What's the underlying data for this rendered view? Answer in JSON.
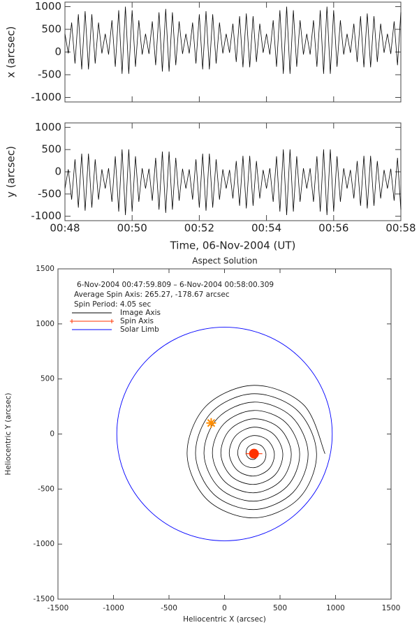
{
  "chart_data": [
    {
      "type": "line",
      "ylabel": "x (arcsec)",
      "xlim": [
        48,
        58
      ],
      "xticks": [
        48,
        50,
        52,
        54,
        56,
        58
      ],
      "ylim": [
        -1100,
        1100
      ],
      "yticks": [
        -1000,
        -500,
        0,
        500,
        1000
      ],
      "color": "#000000",
      "x": [
        48,
        48.1,
        48.2,
        48.3,
        48.4,
        48.5,
        48.6,
        48.7,
        48.8,
        48.9,
        49,
        49.1,
        49.2,
        49.3,
        49.4,
        49.5,
        49.6,
        49.7,
        49.8,
        49.9,
        50,
        50.1,
        50.2,
        50.3,
        50.4,
        50.5,
        50.6,
        50.7,
        50.8,
        50.9,
        51,
        51.1,
        51.2,
        51.3,
        51.4,
        51.5,
        51.6,
        51.7,
        51.8,
        51.9,
        52,
        52.1,
        52.2,
        52.3,
        52.4,
        52.5,
        52.6,
        52.7,
        52.8,
        52.9,
        53,
        53.1,
        53.2,
        53.3,
        53.4,
        53.5,
        53.6,
        53.7,
        53.8,
        53.9,
        54,
        54.1,
        54.2,
        54.3,
        54.4,
        54.5,
        54.6,
        54.7,
        54.8,
        54.9,
        55,
        55.1,
        55.2,
        55.3,
        55.4,
        55.5,
        55.6,
        55.7,
        55.8,
        55.9,
        56,
        56.1,
        56.2,
        56.3,
        56.4,
        56.5,
        56.6,
        56.7,
        56.8,
        56.9,
        57,
        57.1,
        57.2,
        57.3,
        57.4,
        57.5,
        57.6,
        57.7,
        57.8,
        57.9,
        58
      ],
      "values": [
        400,
        -30,
        650,
        -254,
        833,
        -383,
        900,
        -383,
        833,
        -254,
        650,
        -30,
        400,
        -55,
        700,
        -324,
        920,
        -480,
        1000,
        -480,
        920,
        -324,
        700,
        -55,
        400,
        -42,
        675,
        -289,
        876,
        -431,
        950,
        -431,
        876,
        -289,
        675,
        -42,
        400,
        -30,
        650,
        -254,
        833,
        -383,
        900,
        -383,
        833,
        -254,
        650,
        -30,
        400,
        -17,
        625,
        -218,
        790,
        -335,
        850,
        -335,
        790,
        -218,
        625,
        -17,
        400,
        -55,
        700,
        -324,
        920,
        -480,
        1000,
        -480,
        920,
        -324,
        700,
        -55,
        400,
        -55,
        700,
        -324,
        920,
        -480,
        1000,
        -480,
        920,
        -324,
        700,
        -55,
        400,
        -17,
        625,
        -218,
        790,
        -335,
        850,
        -335,
        790,
        -218,
        625,
        -17,
        400,
        -42,
        675,
        -289,
        876
      ]
    },
    {
      "type": "line",
      "ylabel": "y (arcsec)",
      "xlabel": "Time, 06-Nov-2004 (UT)",
      "xlim": [
        48,
        58
      ],
      "xticks": [
        {
          "value": 48,
          "label": "00:48"
        },
        {
          "value": 50,
          "label": "00:50"
        },
        {
          "value": 52,
          "label": "00:52"
        },
        {
          "value": 54,
          "label": "00:54"
        },
        {
          "value": 56,
          "label": "00:56"
        },
        {
          "value": 58,
          "label": "00:58"
        }
      ],
      "ylim": [
        -1100,
        1100
      ],
      "yticks": [
        -1000,
        -500,
        0,
        500,
        1000
      ],
      "color": "#000000",
      "x": [
        48,
        48.1,
        48.2,
        48.3,
        48.4,
        48.5,
        48.6,
        48.7,
        48.8,
        48.9,
        49,
        49.1,
        49.2,
        49.3,
        49.4,
        49.5,
        49.6,
        49.7,
        49.8,
        49.9,
        50,
        50.1,
        50.2,
        50.3,
        50.4,
        50.5,
        50.6,
        50.7,
        50.8,
        50.9,
        51,
        51.1,
        51.2,
        51.3,
        51.4,
        51.5,
        51.6,
        51.7,
        51.8,
        51.9,
        52,
        52.1,
        52.2,
        52.3,
        52.4,
        52.5,
        52.6,
        52.7,
        52.8,
        52.9,
        53,
        53.1,
        53.2,
        53.3,
        53.4,
        53.5,
        53.6,
        53.7,
        53.8,
        53.9,
        54,
        54.1,
        54.2,
        54.3,
        54.4,
        54.5,
        54.6,
        54.7,
        54.8,
        54.9,
        55,
        55.1,
        55.2,
        55.3,
        55.4,
        55.5,
        55.6,
        55.7,
        55.8,
        55.9,
        56,
        56.1,
        56.2,
        56.3,
        56.4,
        56.5,
        56.6,
        56.7,
        56.8,
        56.9,
        57,
        57.1,
        57.2,
        57.3,
        57.4,
        57.5,
        57.6,
        57.7,
        57.8,
        57.9,
        58
      ],
      "values": [
        -375,
        55,
        -625,
        279,
        -808,
        408,
        -875,
        408,
        -808,
        279,
        -625,
        55,
        -375,
        80,
        -675,
        349,
        -895,
        505,
        -975,
        505,
        -895,
        349,
        -675,
        80,
        -375,
        67,
        -650,
        314,
        -851,
        456,
        -925,
        456,
        -851,
        314,
        -650,
        67,
        -375,
        55,
        -625,
        279,
        -808,
        408,
        -875,
        408,
        -808,
        279,
        -625,
        55,
        -375,
        42,
        -600,
        243,
        -765,
        360,
        -825,
        360,
        -765,
        243,
        -600,
        42,
        -375,
        80,
        -675,
        349,
        -895,
        505,
        -975,
        505,
        -895,
        349,
        -675,
        80,
        -375,
        80,
        -675,
        349,
        -895,
        505,
        -975,
        505,
        -895,
        349,
        -675,
        80,
        -375,
        42,
        -600,
        243,
        -765,
        360,
        -825,
        360,
        -765,
        243,
        -600,
        42,
        -375,
        67,
        -650,
        314,
        -851
      ]
    },
    {
      "type": "scatter",
      "title": "Aspect Solution",
      "xlabel": "Heliocentric X (arcsec)",
      "ylabel": "Heliocentric Y (arcsec)",
      "annotations": [
        "6-Nov-2004 00:47:59.809  –  6-Nov-2004 00:58:00.309",
        "Average Spin Axis: 265.27, -178.67 arcsec",
        "Spin Period: 4.05 sec"
      ],
      "xlim": [
        -1500,
        1500
      ],
      "xticks": [
        -1500,
        -1000,
        -500,
        0,
        500,
        1000,
        1500
      ],
      "ylim": [
        -1500,
        1500
      ],
      "yticks": [
        -1500,
        -1000,
        -500,
        0,
        500,
        1000,
        1500
      ],
      "series": [
        {
          "name": "Image Axis",
          "color": "#000000",
          "x": [
            905,
            711,
            265,
            -167,
            -337,
            -154,
            265,
            670,
            829,
            657,
            265,
            -114,
            -261,
            -100,
            265,
            617,
            753,
            603,
            265,
            -60,
            -185,
            -46,
            265,
            563,
            677,
            550,
            265,
            -6,
            -109,
            7,
            265,
            509,
            601,
            496,
            265,
            48,
            -33,
            61,
            265,
            456,
            525,
            442,
            265,
            101,
            43,
            115,
            265,
            402,
            449,
            388,
            265,
            155,
            119,
            168,
            265,
            348,
            373,
            335,
            265,
            209,
            195,
            222,
            265,
            294
          ],
          "y": [
            -179,
            267,
            442,
            253,
            -179,
            -598,
            -762,
            -584,
            -179,
            213,
            366,
            200,
            -179,
            -544,
            -686,
            -531,
            -179,
            159,
            290,
            146,
            -179,
            -490,
            -610,
            -477,
            -179,
            106,
            214,
            92,
            -179,
            -437,
            -534,
            -423,
            -179,
            52,
            138,
            38,
            -179,
            -383,
            -458,
            -370,
            -179,
            -2,
            62,
            -15,
            -179,
            -329,
            -382,
            -316,
            -179,
            -56,
            -14,
            -69,
            -179,
            -276,
            -306,
            -262,
            -179,
            -109,
            -90,
            -123,
            -179,
            -222,
            -230,
            -208
          ]
        },
        {
          "name": "Spin Axis",
          "color": "#ff3300",
          "x": [
            265.27
          ],
          "y": [
            -178.67
          ]
        },
        {
          "name": "Solar Limb",
          "color": "#0000ff",
          "radius": 970
        }
      ],
      "points": [
        {
          "color": "#ff8c00",
          "x": -120,
          "y": 100
        }
      ]
    }
  ]
}
